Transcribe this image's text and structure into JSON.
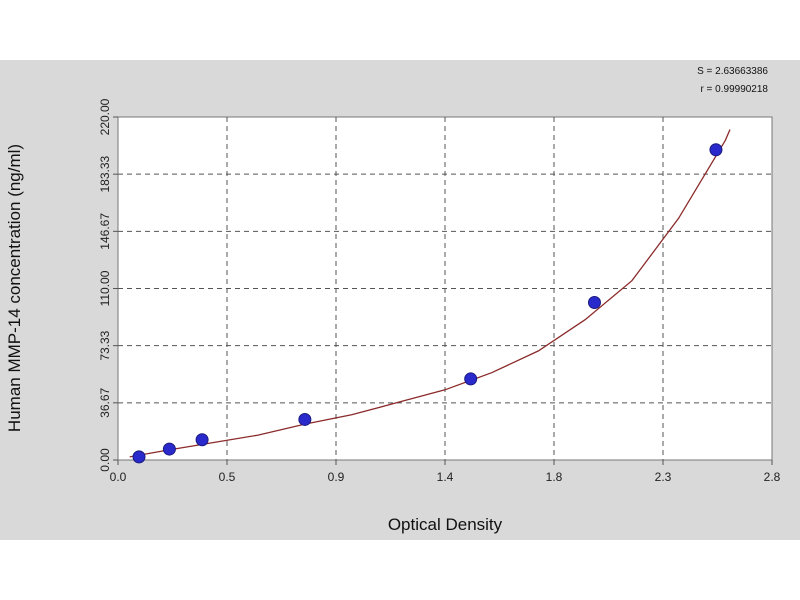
{
  "chart_data": {
    "type": "scatter",
    "xlabel": "Optical Density",
    "ylabel": "Human MMP-14 concentration (ng/ml)",
    "xlim": [
      0,
      2.8
    ],
    "ylim": [
      0,
      220
    ],
    "x_ticks": [
      "0.0",
      "0.5",
      "0.9",
      "1.4",
      "1.8",
      "2.3",
      "2.8"
    ],
    "y_ticks": [
      "0.00",
      "36.67",
      "73.33",
      "110.00",
      "146.67",
      "183.33",
      "220.00"
    ],
    "grid": true,
    "series": [
      {
        "points": [
          {
            "x": 0.09,
            "y": 2
          },
          {
            "x": 0.22,
            "y": 7
          },
          {
            "x": 0.36,
            "y": 13
          },
          {
            "x": 0.8,
            "y": 26
          },
          {
            "x": 1.51,
            "y": 52
          },
          {
            "x": 2.04,
            "y": 101
          },
          {
            "x": 2.56,
            "y": 199
          }
        ],
        "color": "#2a2acc"
      }
    ],
    "fit_curve": {
      "color": "#8b2a2a",
      "points": [
        [
          0.05,
          2
        ],
        [
          0.2,
          6
        ],
        [
          0.4,
          11
        ],
        [
          0.6,
          16
        ],
        [
          0.8,
          23
        ],
        [
          1.0,
          29
        ],
        [
          1.2,
          37
        ],
        [
          1.4,
          45
        ],
        [
          1.6,
          56
        ],
        [
          1.8,
          70
        ],
        [
          2.0,
          90
        ],
        [
          2.2,
          115
        ],
        [
          2.4,
          155
        ],
        [
          2.5,
          180
        ],
        [
          2.6,
          205
        ],
        [
          2.62,
          212
        ]
      ]
    },
    "stats": [
      "S = 2.63663386",
      "r = 0.99990218"
    ]
  }
}
